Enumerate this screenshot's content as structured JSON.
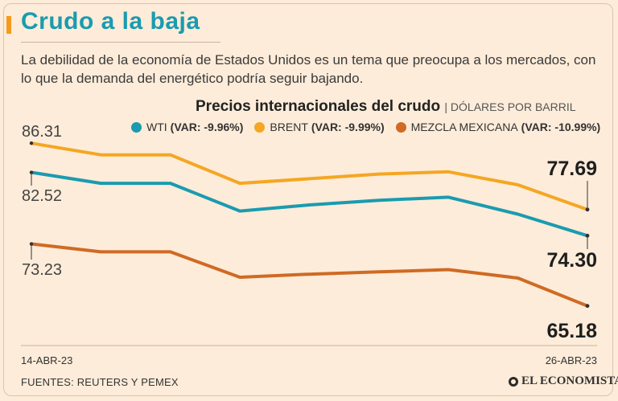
{
  "title": "Crudo a la baja",
  "subtitle": "La debilidad de la economía de Estados Unidos es un tema que preocupa a los mercados, con lo que la demanda del energético podría seguir bajando.",
  "source": "FUENTES: REUTERS Y PEMEX",
  "logo_text": "EL ECONOMISTA",
  "chart_data": {
    "type": "line",
    "title": "Precios internacionales del crudo",
    "unit": "DÓLARES POR BARRIL",
    "x_start_label": "14-ABR-23",
    "x_end_label": "26-ABR-23",
    "x": [
      0,
      1,
      2,
      3,
      4,
      5,
      6,
      7,
      8
    ],
    "ylim": [
      60,
      90
    ],
    "series": [
      {
        "name": "WTI",
        "var": "(VAR: -9.96%)",
        "color": "#1a9bb0",
        "values": [
          82.52,
          81.1,
          81.1,
          77.5,
          78.3,
          78.9,
          79.3,
          77.1,
          74.3
        ],
        "start_label": "82.52",
        "end_label": "74.30"
      },
      {
        "name": "BRENT",
        "var": "(VAR: -9.99%)",
        "color": "#f5a623",
        "values": [
          86.31,
          84.8,
          84.8,
          81.1,
          81.7,
          82.3,
          82.6,
          80.9,
          77.69
        ],
        "start_label": "86.31",
        "end_label": "77.69"
      },
      {
        "name": "MEZCLA MEXICANA",
        "var": "(VAR: -10.99%)",
        "color": "#d06a24",
        "values": [
          73.23,
          72.2,
          72.2,
          68.9,
          69.3,
          69.6,
          69.9,
          68.8,
          65.18
        ],
        "start_label": "73.23",
        "end_label": "65.18"
      }
    ]
  }
}
